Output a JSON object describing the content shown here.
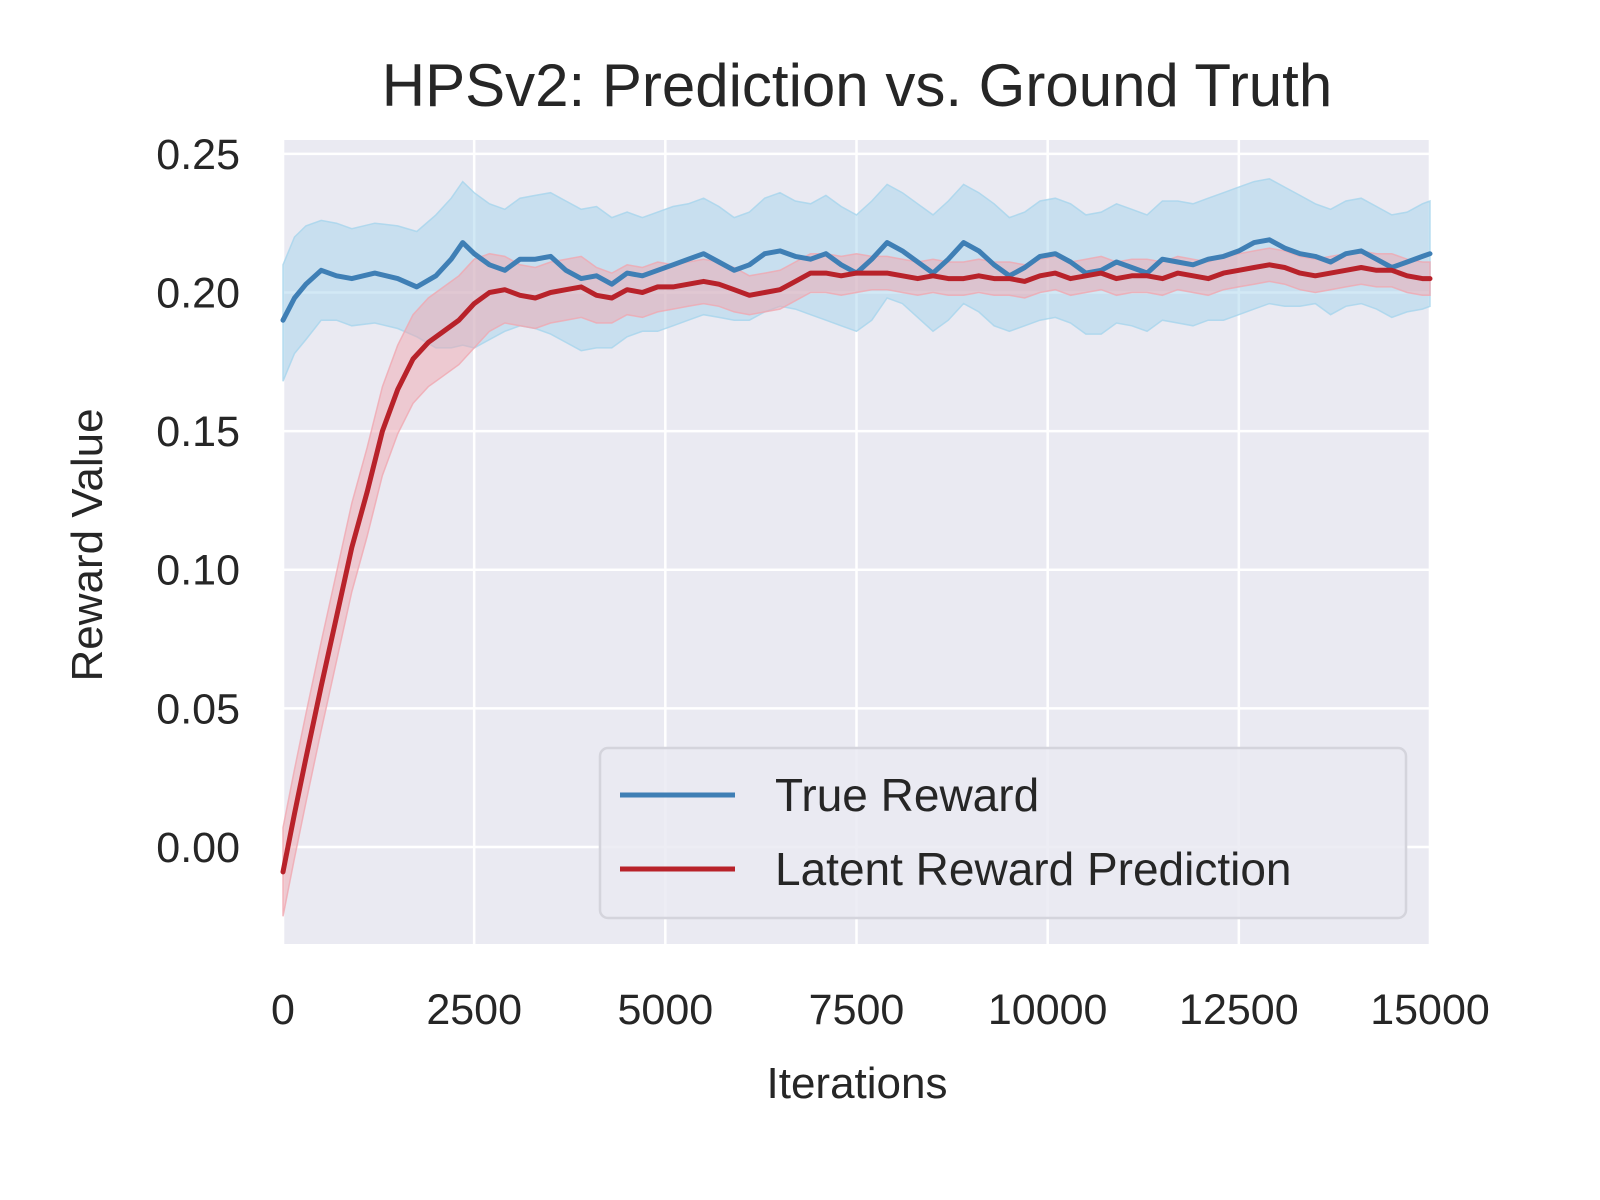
{
  "chart_data": {
    "type": "line",
    "title": "HPSv2: Prediction vs. Ground Truth",
    "xlabel": "Iterations",
    "ylabel": "Reward Value",
    "xlim": [
      0,
      15000
    ],
    "ylim": [
      -0.035,
      0.255
    ],
    "xticks": [
      0,
      2500,
      5000,
      7500,
      10000,
      12500,
      15000
    ],
    "xtick_labels": [
      "0",
      "2500",
      "5000",
      "7500",
      "10000",
      "12500",
      "15000"
    ],
    "yticks": [
      0.0,
      0.05,
      0.1,
      0.15,
      0.2,
      0.25
    ],
    "ytick_labels": [
      "0.00",
      "0.05",
      "0.10",
      "0.15",
      "0.20",
      "0.25"
    ],
    "grid": true,
    "legend_position": "lower-right",
    "series": [
      {
        "name": "True Reward",
        "color": "#3f7fb5",
        "band_color": "#a6d4ec",
        "x": [
          0,
          150,
          300,
          500,
          700,
          900,
          1200,
          1500,
          1750,
          2000,
          2200,
          2350,
          2500,
          2700,
          2900,
          3100,
          3300,
          3500,
          3700,
          3900,
          4100,
          4300,
          4500,
          4700,
          4900,
          5100,
          5300,
          5500,
          5700,
          5900,
          6100,
          6300,
          6500,
          6700,
          6900,
          7100,
          7300,
          7500,
          7700,
          7900,
          8100,
          8300,
          8500,
          8700,
          8900,
          9100,
          9300,
          9500,
          9700,
          9900,
          10100,
          10300,
          10500,
          10700,
          10900,
          11100,
          11300,
          11500,
          11700,
          11900,
          12100,
          12300,
          12500,
          12700,
          12900,
          13100,
          13300,
          13500,
          13700,
          13900,
          14100,
          14300,
          14500,
          14700,
          14900,
          15000
        ],
        "y": [
          0.19,
          0.198,
          0.203,
          0.208,
          0.206,
          0.205,
          0.207,
          0.205,
          0.202,
          0.206,
          0.212,
          0.218,
          0.214,
          0.21,
          0.208,
          0.212,
          0.212,
          0.213,
          0.208,
          0.205,
          0.206,
          0.203,
          0.207,
          0.206,
          0.208,
          0.21,
          0.212,
          0.214,
          0.211,
          0.208,
          0.21,
          0.214,
          0.215,
          0.213,
          0.212,
          0.214,
          0.21,
          0.207,
          0.212,
          0.218,
          0.215,
          0.211,
          0.207,
          0.212,
          0.218,
          0.215,
          0.21,
          0.206,
          0.209,
          0.213,
          0.214,
          0.211,
          0.207,
          0.208,
          0.211,
          0.209,
          0.207,
          0.212,
          0.211,
          0.21,
          0.212,
          0.213,
          0.215,
          0.218,
          0.219,
          0.216,
          0.214,
          0.213,
          0.211,
          0.214,
          0.215,
          0.212,
          0.209,
          0.211,
          0.213,
          0.214
        ],
        "lower": [
          0.168,
          0.178,
          0.183,
          0.19,
          0.19,
          0.188,
          0.189,
          0.187,
          0.184,
          0.18,
          0.18,
          0.181,
          0.18,
          0.183,
          0.186,
          0.188,
          0.187,
          0.185,
          0.182,
          0.179,
          0.18,
          0.18,
          0.184,
          0.186,
          0.186,
          0.188,
          0.19,
          0.192,
          0.191,
          0.19,
          0.19,
          0.193,
          0.195,
          0.194,
          0.192,
          0.19,
          0.188,
          0.186,
          0.19,
          0.198,
          0.196,
          0.191,
          0.186,
          0.19,
          0.196,
          0.193,
          0.188,
          0.186,
          0.188,
          0.19,
          0.191,
          0.189,
          0.185,
          0.185,
          0.189,
          0.188,
          0.186,
          0.19,
          0.189,
          0.188,
          0.19,
          0.19,
          0.192,
          0.194,
          0.196,
          0.195,
          0.195,
          0.196,
          0.192,
          0.195,
          0.196,
          0.194,
          0.191,
          0.193,
          0.194,
          0.195
        ],
        "upper": [
          0.21,
          0.22,
          0.224,
          0.226,
          0.225,
          0.223,
          0.225,
          0.224,
          0.222,
          0.228,
          0.234,
          0.24,
          0.236,
          0.232,
          0.23,
          0.234,
          0.235,
          0.236,
          0.233,
          0.23,
          0.231,
          0.227,
          0.229,
          0.227,
          0.229,
          0.231,
          0.232,
          0.234,
          0.231,
          0.227,
          0.229,
          0.234,
          0.236,
          0.233,
          0.232,
          0.235,
          0.231,
          0.228,
          0.233,
          0.239,
          0.236,
          0.232,
          0.228,
          0.233,
          0.239,
          0.236,
          0.232,
          0.227,
          0.229,
          0.233,
          0.234,
          0.232,
          0.228,
          0.229,
          0.232,
          0.23,
          0.228,
          0.233,
          0.233,
          0.232,
          0.234,
          0.236,
          0.238,
          0.24,
          0.241,
          0.238,
          0.235,
          0.232,
          0.23,
          0.233,
          0.234,
          0.231,
          0.228,
          0.229,
          0.232,
          0.233
        ]
      },
      {
        "name": "Latent Reward Prediction",
        "color": "#b8222a",
        "band_color": "#f0a8b0",
        "x": [
          0,
          150,
          300,
          500,
          700,
          900,
          1100,
          1300,
          1500,
          1700,
          1900,
          2100,
          2300,
          2500,
          2700,
          2900,
          3100,
          3300,
          3500,
          3700,
          3900,
          4100,
          4300,
          4500,
          4700,
          4900,
          5100,
          5300,
          5500,
          5700,
          5900,
          6100,
          6300,
          6500,
          6700,
          6900,
          7100,
          7300,
          7500,
          7700,
          7900,
          8100,
          8300,
          8500,
          8700,
          8900,
          9100,
          9300,
          9500,
          9700,
          9900,
          10100,
          10300,
          10500,
          10700,
          10900,
          11100,
          11300,
          11500,
          11700,
          11900,
          12100,
          12300,
          12500,
          12700,
          12900,
          13100,
          13300,
          13500,
          13700,
          13900,
          14100,
          14300,
          14500,
          14700,
          14900,
          15000
        ],
        "y": [
          -0.009,
          0.012,
          0.032,
          0.058,
          0.083,
          0.108,
          0.128,
          0.15,
          0.165,
          0.176,
          0.182,
          0.186,
          0.19,
          0.196,
          0.2,
          0.201,
          0.199,
          0.198,
          0.2,
          0.201,
          0.202,
          0.199,
          0.198,
          0.201,
          0.2,
          0.202,
          0.202,
          0.203,
          0.204,
          0.203,
          0.201,
          0.199,
          0.2,
          0.201,
          0.204,
          0.207,
          0.207,
          0.206,
          0.207,
          0.207,
          0.207,
          0.206,
          0.205,
          0.206,
          0.205,
          0.205,
          0.206,
          0.205,
          0.205,
          0.204,
          0.206,
          0.207,
          0.205,
          0.206,
          0.207,
          0.205,
          0.206,
          0.206,
          0.205,
          0.207,
          0.206,
          0.205,
          0.207,
          0.208,
          0.209,
          0.21,
          0.209,
          0.207,
          0.206,
          0.207,
          0.208,
          0.209,
          0.208,
          0.208,
          0.206,
          0.205,
          0.205
        ],
        "lower": [
          -0.025,
          -0.004,
          0.016,
          0.042,
          0.067,
          0.092,
          0.112,
          0.134,
          0.149,
          0.16,
          0.166,
          0.17,
          0.174,
          0.18,
          0.186,
          0.189,
          0.188,
          0.187,
          0.189,
          0.19,
          0.191,
          0.189,
          0.189,
          0.192,
          0.191,
          0.193,
          0.194,
          0.195,
          0.196,
          0.195,
          0.193,
          0.192,
          0.193,
          0.194,
          0.197,
          0.2,
          0.2,
          0.199,
          0.2,
          0.201,
          0.201,
          0.2,
          0.199,
          0.2,
          0.199,
          0.199,
          0.2,
          0.199,
          0.199,
          0.198,
          0.2,
          0.201,
          0.199,
          0.2,
          0.201,
          0.199,
          0.2,
          0.2,
          0.199,
          0.201,
          0.2,
          0.199,
          0.201,
          0.202,
          0.203,
          0.204,
          0.203,
          0.201,
          0.2,
          0.201,
          0.202,
          0.203,
          0.202,
          0.202,
          0.2,
          0.199,
          0.199
        ],
        "upper": [
          0.007,
          0.028,
          0.048,
          0.074,
          0.099,
          0.124,
          0.144,
          0.166,
          0.181,
          0.192,
          0.198,
          0.202,
          0.206,
          0.212,
          0.214,
          0.213,
          0.21,
          0.209,
          0.211,
          0.212,
          0.213,
          0.209,
          0.207,
          0.21,
          0.209,
          0.211,
          0.21,
          0.211,
          0.212,
          0.211,
          0.209,
          0.206,
          0.207,
          0.208,
          0.211,
          0.214,
          0.214,
          0.213,
          0.214,
          0.213,
          0.213,
          0.212,
          0.211,
          0.212,
          0.211,
          0.211,
          0.212,
          0.211,
          0.211,
          0.21,
          0.212,
          0.213,
          0.211,
          0.212,
          0.213,
          0.211,
          0.212,
          0.212,
          0.211,
          0.213,
          0.212,
          0.211,
          0.213,
          0.214,
          0.215,
          0.216,
          0.215,
          0.213,
          0.212,
          0.213,
          0.214,
          0.215,
          0.214,
          0.214,
          0.212,
          0.211,
          0.211
        ]
      }
    ]
  }
}
